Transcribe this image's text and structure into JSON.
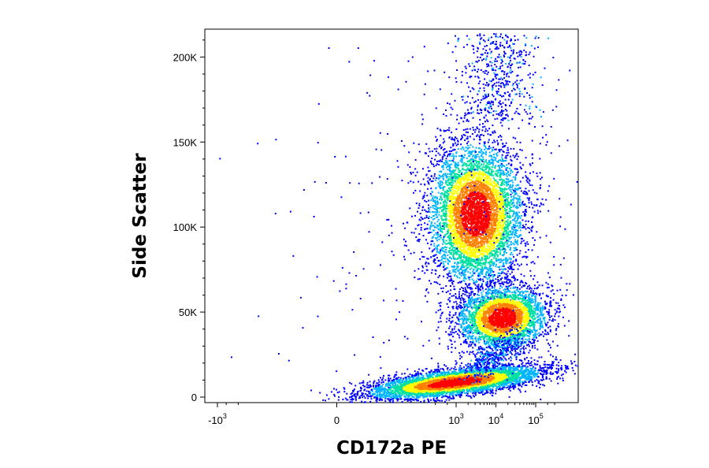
{
  "chart_data": {
    "type": "scatter",
    "title": "",
    "xlabel": "CD172a PE",
    "ylabel": "Side Scatter",
    "x_scale": "biexponential",
    "y_scale": "linear",
    "ylim": [
      0,
      215000
    ],
    "y_ticks": [
      {
        "value": 0,
        "label": "0"
      },
      {
        "value": 50000,
        "label": "50K"
      },
      {
        "value": 100000,
        "label": "100K"
      },
      {
        "value": 150000,
        "label": "150K"
      },
      {
        "value": 200000,
        "label": "200K"
      }
    ],
    "x_ticks": [
      {
        "value": -1000,
        "base": "-10",
        "exp": "3"
      },
      {
        "value": 0,
        "base": "0",
        "exp": ""
      },
      {
        "value": 1000,
        "base": "10",
        "exp": "3"
      },
      {
        "value": 10000,
        "base": "10",
        "exp": "4"
      },
      {
        "value": 100000,
        "base": "10",
        "exp": "5"
      }
    ],
    "density_colormap": [
      "#0000ff",
      "#00b4ff",
      "#00e0a0",
      "#ffff00",
      "#ff8000",
      "#ff0000"
    ],
    "populations": [
      {
        "center_x": 3000,
        "center_y": 108000,
        "spread": "large"
      },
      {
        "center_x": 14000,
        "center_y": 47000,
        "spread": "medium"
      },
      {
        "center_x": 900,
        "center_y": 9000,
        "spread": "elongated"
      }
    ],
    "grid": false,
    "legend": "none"
  }
}
